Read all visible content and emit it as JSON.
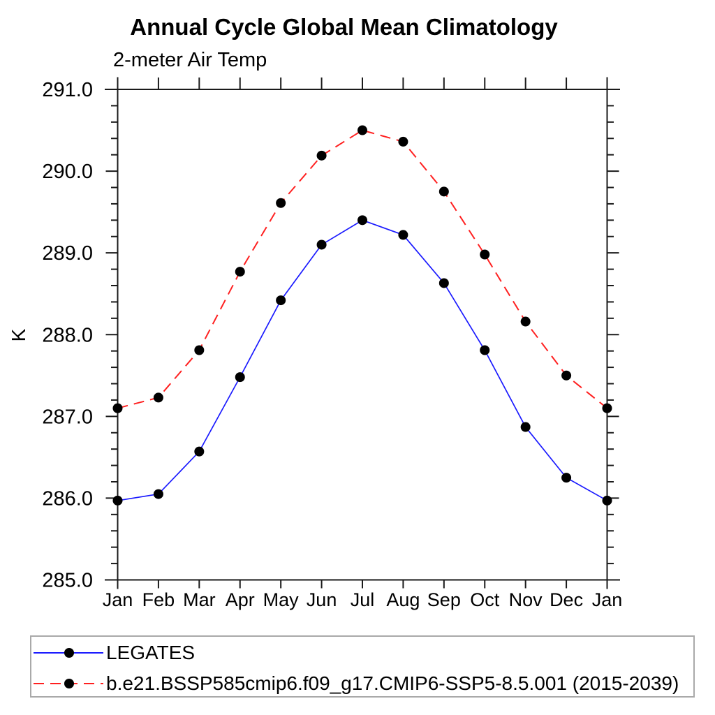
{
  "header": {
    "title": "Annual Cycle Global Mean Climatology",
    "subtitle": "2-meter Air Temp"
  },
  "chart_data": {
    "type": "line",
    "title": "Annual Cycle Global Mean Climatology",
    "subtitle": "2-meter Air Temp",
    "xlabel": "",
    "ylabel": "K",
    "categories": [
      "Jan",
      "Feb",
      "Mar",
      "Apr",
      "May",
      "Jun",
      "Jul",
      "Aug",
      "Sep",
      "Oct",
      "Nov",
      "Dec",
      "Jan"
    ],
    "ylim": [
      285.0,
      291.0
    ],
    "ytick_major_step": 1.0,
    "ytick_minor_step": 0.2,
    "ytick_labels": [
      "285.0",
      "286.0",
      "287.0",
      "288.0",
      "289.0",
      "290.0",
      "291.0"
    ],
    "grid": false,
    "legend_position": "bottom",
    "axis_color": "#1a1a1a",
    "marker_color": "#000000",
    "series": [
      {
        "name": "LEGATES",
        "color": "#1a1aff",
        "line_style": "solid",
        "marker": "circle",
        "values": [
          285.97,
          286.05,
          286.57,
          287.48,
          288.42,
          289.1,
          289.4,
          289.22,
          288.63,
          287.81,
          286.87,
          286.25,
          285.97
        ]
      },
      {
        "name": "b.e21.BSSP585cmip6.f09_g17.CMIP6-SSP5-8.5.001 (2015-2039)",
        "color": "#ff2020",
        "line_style": "dashed",
        "marker": "circle",
        "values": [
          287.1,
          287.23,
          287.81,
          288.77,
          289.61,
          290.19,
          290.5,
          290.36,
          289.75,
          288.98,
          288.16,
          287.5,
          287.1
        ]
      }
    ]
  }
}
